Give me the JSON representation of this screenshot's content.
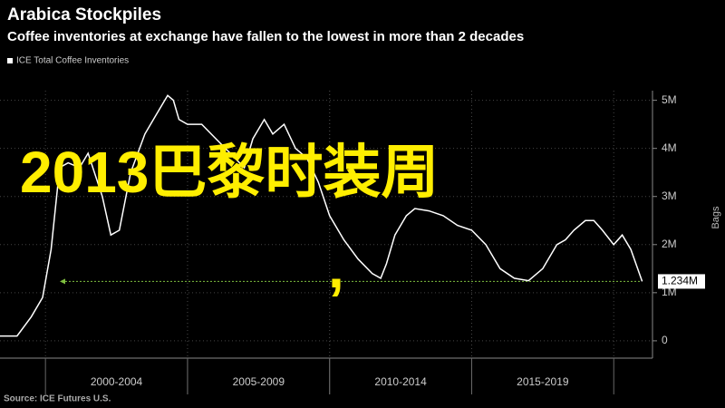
{
  "chart_data": {
    "type": "line",
    "title": "Arabica Stockpiles",
    "subtitle": "Coffee inventories at exchange have fallen to the lowest in more than 2 decades",
    "y_label": "Bags",
    "source": "Source: ICE Futures U.S.",
    "x": [
      1998.4,
      1999,
      1999.5,
      1999.9,
      2000.2,
      2000.5,
      2000.8,
      2001.2,
      2001.5,
      2002,
      2002.3,
      2002.6,
      2003,
      2003.5,
      2003.9,
      2004.3,
      2004.5,
      2004.7,
      2005,
      2005.5,
      2006,
      2006.5,
      2007,
      2007.3,
      2007.7,
      2008,
      2008.4,
      2008.8,
      2009.2,
      2009.6,
      2010,
      2010.5,
      2011,
      2011.5,
      2011.8,
      2012,
      2012.3,
      2012.7,
      2013,
      2013.5,
      2014,
      2014.5,
      2015,
      2015.5,
      2016,
      2016.5,
      2017,
      2017.5,
      2018,
      2018.3,
      2018.6,
      2019,
      2019.3,
      2019.6,
      2020,
      2020.3,
      2020.6,
      2021
    ],
    "series": [
      {
        "name": "ICE Total Coffee Inventories",
        "color": "#ffffff",
        "values": [
          0.1,
          0.1,
          0.5,
          0.9,
          1.9,
          3.6,
          3.7,
          3.6,
          3.9,
          3.0,
          2.2,
          2.3,
          3.5,
          4.3,
          4.7,
          5.1,
          5.0,
          4.6,
          4.5,
          4.5,
          4.2,
          3.9,
          3.6,
          4.2,
          4.6,
          4.3,
          4.5,
          4.0,
          3.8,
          3.3,
          2.6,
          2.1,
          1.7,
          1.4,
          1.3,
          1.6,
          2.2,
          2.6,
          2.75,
          2.7,
          2.6,
          2.4,
          2.3,
          2.0,
          1.5,
          1.3,
          1.25,
          1.5,
          2.0,
          2.1,
          2.3,
          2.5,
          2.5,
          2.3,
          2.0,
          2.2,
          1.9,
          1.234
        ]
      }
    ],
    "xlim": [
      1998.4,
      2021.3
    ],
    "xticks": [
      {
        "value": 2002.5,
        "label": "2000-2004"
      },
      {
        "value": 2007.5,
        "label": "2005-2009"
      },
      {
        "value": 2012.5,
        "label": "2010-2014"
      },
      {
        "value": 2017.5,
        "label": "2015-2019"
      }
    ],
    "ylim": [
      -0.36,
      5.2
    ],
    "yticks": [
      0,
      {
        "value": 1,
        "label": "1M"
      },
      {
        "value": 2,
        "label": "2M"
      },
      {
        "value": 3,
        "label": "3M"
      },
      {
        "value": 4,
        "label": "4M"
      },
      {
        "value": 5,
        "label": "5M"
      }
    ],
    "grid": true,
    "annotation": {
      "value": 1.234,
      "label": "1.234M",
      "color": "#7fbf3f"
    },
    "overlay": {
      "text": "2013巴黎时装周",
      "comma": ",",
      "color": "#ffee00"
    }
  }
}
